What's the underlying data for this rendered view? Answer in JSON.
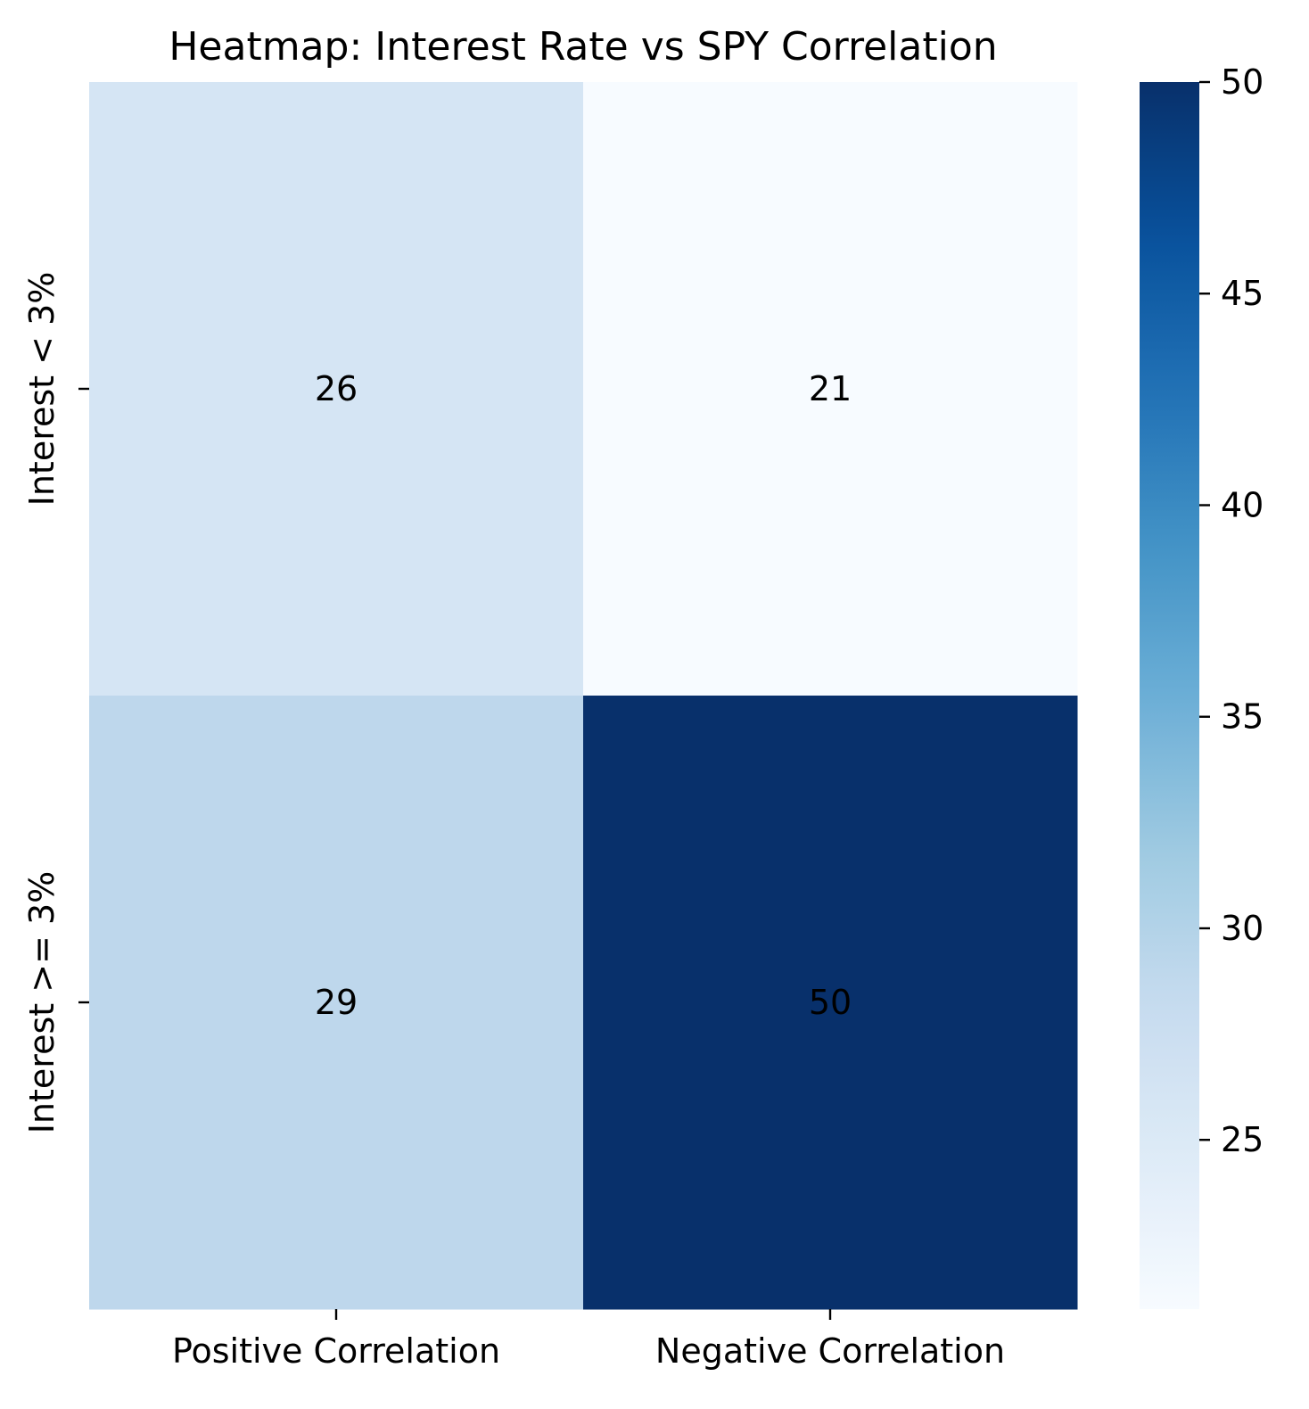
{
  "chart_data": {
    "type": "heatmap",
    "title": "Heatmap: Interest Rate vs SPY Correlation",
    "xlabel": "",
    "ylabel": "",
    "x_categories": [
      "Positive Correlation",
      "Negative Correlation"
    ],
    "y_categories": [
      "Interest < 3%",
      "Interest >= 3%"
    ],
    "values": [
      [
        26,
        21
      ],
      [
        29,
        50
      ]
    ],
    "colormap": "Blues",
    "colorbar": {
      "min": 21,
      "max": 50,
      "ticks": [
        25,
        30,
        35,
        40,
        45,
        50
      ]
    },
    "annotations": true,
    "grid": false,
    "colors": {
      "text_dark": "#262626",
      "text_light": "#ffffff",
      "cmap_stops": [
        "#f7fbff",
        "#deebf7",
        "#c6dbef",
        "#9ecae1",
        "#6baed6",
        "#4292c6",
        "#2171b5",
        "#08519c",
        "#08306b"
      ]
    }
  }
}
